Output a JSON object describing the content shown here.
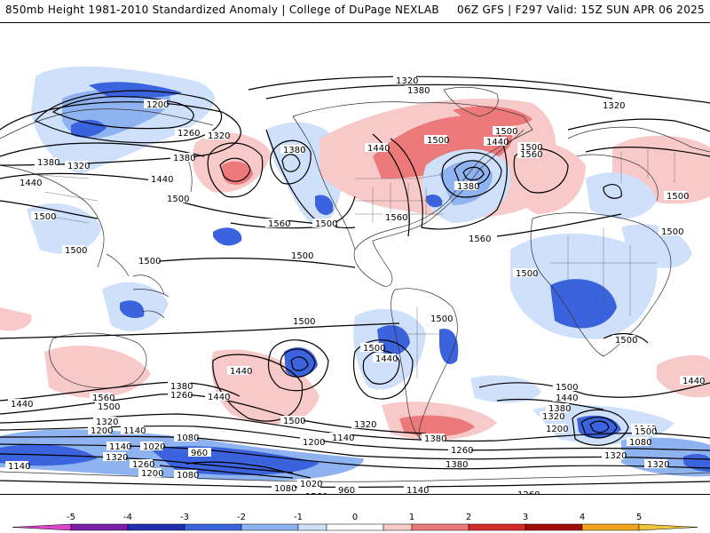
{
  "header": {
    "title_left": "850mb Height 1981-2010 Standardized Anomaly | College of DuPage NEXLAB",
    "title_right": "06Z GFS | F297 Valid: 15Z SUN APR 06 2025"
  },
  "colorbar": {
    "ticks": [
      "-5",
      "-4",
      "-3",
      "-2",
      "-1",
      "0",
      "1",
      "2",
      "3",
      "4",
      "5"
    ],
    "bins": [
      {
        "color": "#d946c9"
      },
      {
        "color": "#7c1fa8"
      },
      {
        "color": "#1e2fb0"
      },
      {
        "color": "#3a63dd"
      },
      {
        "color": "#8fb3f0"
      },
      {
        "color": "#cfe0fb"
      },
      {
        "color": "#ffffff"
      },
      {
        "color": "#f8c9c9"
      },
      {
        "color": "#ec7a7a"
      },
      {
        "color": "#d52b2b"
      },
      {
        "color": "#a30b0b"
      },
      {
        "color": "#f3a41a"
      },
      {
        "color": "#f0c53b"
      }
    ]
  },
  "contour_labels": {
    "top": [
      "1320",
      "1380",
      "1200",
      "1320",
      "1260",
      "1320",
      "1380"
    ],
    "north_america": [
      "1440",
      "1500",
      "1500",
      "1560",
      "1440",
      "1380",
      "1500",
      "1560",
      "1560"
    ],
    "asia": [
      "1380",
      "1320",
      "1440",
      "1500",
      "1500",
      "1440",
      "1500",
      "1380",
      "1560",
      "1500",
      "1500"
    ],
    "pacific": [
      "1500",
      "1500",
      "1500",
      "1440",
      "1380",
      "1260",
      "1500"
    ],
    "south_america": [
      "1500",
      "1440",
      "1500",
      "1380"
    ],
    "atlantic_africa": [
      "1500",
      "1500",
      "1500",
      "1500",
      "1440",
      "1380",
      "1320",
      "1200",
      "1140",
      "1080",
      "1320"
    ],
    "southern": [
      "1560",
      "1500",
      "1440",
      "1380",
      "1320",
      "1260",
      "1200",
      "1140",
      "1080",
      "1020",
      "960",
      "1140",
      "1080",
      "1200",
      "1260",
      "1320",
      "1320",
      "1260",
      "1200",
      "1140",
      "1140",
      "1080",
      "1020",
      "960",
      "1140",
      "1200",
      "1260",
      "1320",
      "1440",
      "1500",
      "1440"
    ]
  }
}
